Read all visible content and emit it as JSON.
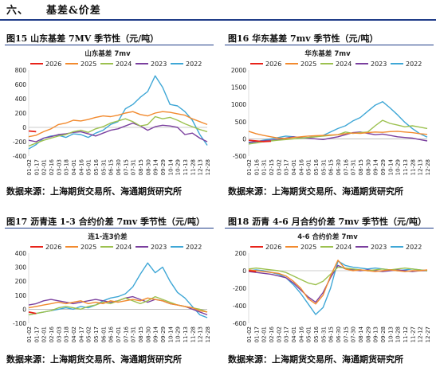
{
  "section": {
    "number": "六、",
    "title": "基差&价差"
  },
  "figures": [
    {
      "caption": "图15  山东基差 7MV 季节性（元/吨）",
      "source": "数据来源：上海期货交易所、海通期货研究所"
    },
    {
      "caption": "图16  华东基差 7mv 季节性（元/吨）",
      "source": "数据来源：上海期货交易所、海通期货研究所"
    },
    {
      "caption": "图17  沥青连 1-3 合约价差 7mv 季节性（元/吨）",
      "source": "数据来源：上海期货交易所、海通期货研究所"
    },
    {
      "caption": "图18  沥青 4-6 月合约价差 7mv 季节性（元/吨）",
      "source": "数据来源：上海期货交易所、海通期货研究所"
    }
  ],
  "colors": {
    "2026": "#e8231a",
    "2025": "#f28a2e",
    "2024": "#9cc14f",
    "2023": "#7a3f9e",
    "2022": "#3fa7d6"
  },
  "chart_data": [
    {
      "type": "line",
      "title": "山东基差 7mv",
      "categories": [
        "01-02",
        "01-17",
        "02-01",
        "02-16",
        "03-03",
        "03-18",
        "04-01",
        "04-16",
        "05-01",
        "05-16",
        "05-31",
        "06-15",
        "06-30",
        "07-15",
        "07-31",
        "08-15",
        "08-30",
        "09-14",
        "09-29",
        "10-14",
        "10-29",
        "11-13",
        "11-28",
        "12-13",
        "12-28"
      ],
      "ylim": [
        -400,
        800
      ],
      "yticks": [
        -400,
        -200,
        0,
        200,
        400,
        600,
        800
      ],
      "legend": "top",
      "series": [
        {
          "name": "2026",
          "values": [
            -50,
            -60,
            null,
            null,
            null,
            null,
            null,
            null,
            null,
            null,
            null,
            null,
            null,
            null,
            null,
            null,
            null,
            null,
            null,
            null,
            null,
            null,
            null,
            null,
            null
          ]
        },
        {
          "name": "2025",
          "values": [
            -130,
            -110,
            -60,
            -20,
            40,
            60,
            100,
            90,
            110,
            140,
            160,
            150,
            170,
            200,
            220,
            180,
            160,
            200,
            220,
            210,
            190,
            170,
            120,
            80,
            40
          ]
        },
        {
          "name": "2024",
          "values": [
            -260,
            -220,
            -180,
            -150,
            -120,
            -100,
            -60,
            -40,
            -70,
            -20,
            10,
            60,
            90,
            120,
            80,
            20,
            40,
            150,
            120,
            140,
            100,
            50,
            10,
            -30,
            -60
          ]
        },
        {
          "name": "2023",
          "values": [
            -180,
            -200,
            -150,
            -130,
            -100,
            -90,
            -70,
            -60,
            -90,
            -120,
            -80,
            -40,
            -20,
            20,
            60,
            20,
            -40,
            10,
            30,
            20,
            0,
            -100,
            -80,
            -150,
            -200
          ]
        },
        {
          "name": "2022",
          "values": [
            -300,
            -240,
            -150,
            -120,
            -110,
            -140,
            -90,
            -100,
            -140,
            -80,
            -40,
            40,
            80,
            260,
            320,
            420,
            500,
            720,
            560,
            320,
            300,
            220,
            100,
            -100,
            -250
          ]
        }
      ]
    },
    {
      "type": "line",
      "title": "华东基差 7mv",
      "categories": [
        "01-02",
        "01-16",
        "01-31",
        "02-15",
        "03-02",
        "03-17",
        "04-01",
        "04-16",
        "05-01",
        "05-16",
        "05-31",
        "06-15",
        "06-30",
        "07-16",
        "07-31",
        "08-15",
        "08-30",
        "09-14",
        "09-29",
        "10-14",
        "10-29",
        "11-13",
        "11-28",
        "12-13",
        "12-28"
      ],
      "ylim": [
        -500,
        2000
      ],
      "yticks": [
        -500,
        0,
        500,
        1000,
        1500,
        2000
      ],
      "legend": "top",
      "series": [
        {
          "name": "2026",
          "values": [
            -40,
            -60,
            -80,
            -70,
            null,
            null,
            null,
            null,
            null,
            null,
            null,
            null,
            null,
            null,
            null,
            null,
            null,
            null,
            null,
            null,
            null,
            null,
            null,
            null,
            null
          ]
        },
        {
          "name": "2025",
          "values": [
            220,
            150,
            100,
            60,
            20,
            10,
            40,
            60,
            80,
            90,
            100,
            110,
            120,
            150,
            170,
            160,
            180,
            200,
            190,
            210,
            220,
            200,
            180,
            150,
            130
          ]
        },
        {
          "name": "2024",
          "values": [
            -150,
            -120,
            -80,
            -60,
            -40,
            -20,
            0,
            20,
            40,
            60,
            80,
            100,
            120,
            200,
            160,
            180,
            200,
            380,
            540,
            450,
            400,
            350,
            380,
            340,
            300
          ]
        },
        {
          "name": "2023",
          "values": [
            -100,
            -80,
            -60,
            -40,
            -20,
            20,
            60,
            40,
            20,
            0,
            -20,
            20,
            60,
            120,
            180,
            200,
            160,
            120,
            140,
            100,
            60,
            40,
            20,
            -20,
            -60
          ]
        },
        {
          "name": "2022",
          "values": [
            -120,
            -80,
            -40,
            0,
            40,
            80,
            60,
            20,
            40,
            60,
            100,
            200,
            300,
            380,
            520,
            620,
            800,
            980,
            1080,
            900,
            700,
            480,
            300,
            150,
            50
          ]
        }
      ]
    },
    {
      "type": "line",
      "title": "连1-连3价差",
      "categories": [
        "01-02",
        "01-17",
        "02-01",
        "02-16",
        "03-03",
        "03-18",
        "04-02",
        "04-17",
        "05-02",
        "05-17",
        "06-01",
        "06-16",
        "07-01",
        "07-16",
        "07-31",
        "08-15",
        "08-30",
        "09-14",
        "09-29",
        "10-14",
        "10-29",
        "11-13",
        "11-28",
        "12-13",
        "12-28"
      ],
      "ylim": [
        -100,
        400
      ],
      "yticks": [
        -100,
        0,
        100,
        200,
        300,
        400
      ],
      "legend": "top",
      "series": [
        {
          "name": "2026",
          "values": [
            -20,
            -30,
            null,
            null,
            null,
            null,
            null,
            null,
            null,
            null,
            null,
            null,
            null,
            null,
            null,
            null,
            null,
            null,
            null,
            null,
            null,
            null,
            null,
            null,
            null
          ]
        },
        {
          "name": "2025",
          "values": [
            10,
            20,
            30,
            40,
            50,
            40,
            50,
            60,
            40,
            50,
            40,
            60,
            50,
            60,
            70,
            60,
            80,
            70,
            60,
            40,
            30,
            20,
            10,
            -10,
            -20
          ]
        },
        {
          "name": "2024",
          "values": [
            -40,
            -30,
            -20,
            -10,
            10,
            20,
            10,
            0,
            20,
            30,
            50,
            40,
            60,
            80,
            60,
            40,
            60,
            90,
            70,
            50,
            30,
            20,
            10,
            0,
            -20
          ]
        },
        {
          "name": "2023",
          "values": [
            30,
            40,
            60,
            70,
            60,
            50,
            40,
            50,
            60,
            70,
            60,
            50,
            60,
            80,
            90,
            70,
            50,
            70,
            60,
            40,
            30,
            20,
            0,
            -20,
            -40
          ]
        },
        {
          "name": "2022",
          "values": [
            -40,
            -30,
            -20,
            -10,
            0,
            10,
            0,
            20,
            10,
            30,
            60,
            80,
            90,
            110,
            160,
            250,
            330,
            260,
            300,
            200,
            120,
            80,
            20,
            -40,
            -60
          ]
        }
      ]
    },
    {
      "type": "line",
      "title": "4-6 合约价差 7mv",
      "categories": [
        "01-02",
        "01-17",
        "02-01",
        "02-16",
        "03-02",
        "03-17",
        "04-01",
        "04-16",
        "05-01",
        "05-16",
        "05-31",
        "06-15",
        "06-30",
        "07-15",
        "07-30",
        "08-14",
        "08-29",
        "09-13",
        "09-28",
        "10-13",
        "10-28",
        "11-12",
        "11-27",
        "12-12",
        "12-27"
      ],
      "ylim": [
        -600,
        200
      ],
      "yticks": [
        -600,
        -400,
        -200,
        0,
        200
      ],
      "legend": "top",
      "series": [
        {
          "name": "2026",
          "values": [
            0,
            -10,
            null,
            null,
            null,
            null,
            null,
            null,
            null,
            null,
            null,
            null,
            null,
            null,
            null,
            null,
            null,
            null,
            null,
            null,
            null,
            null,
            null,
            null,
            null
          ]
        },
        {
          "name": "2025",
          "values": [
            10,
            0,
            -10,
            -20,
            -30,
            -60,
            -120,
            -200,
            -320,
            -380,
            -280,
            -60,
            120,
            20,
            0,
            10,
            0,
            -10,
            0,
            10,
            0,
            -10,
            0,
            0,
            10
          ]
        },
        {
          "name": "2024",
          "values": [
            20,
            30,
            20,
            10,
            0,
            -20,
            -60,
            -100,
            -140,
            -160,
            -120,
            -40,
            40,
            30,
            20,
            10,
            0,
            10,
            20,
            10,
            20,
            30,
            20,
            10,
            0
          ]
        },
        {
          "name": "2023",
          "values": [
            -10,
            -20,
            -30,
            -40,
            -60,
            -80,
            -140,
            -220,
            -300,
            -360,
            -250,
            -80,
            60,
            20,
            10,
            0,
            10,
            0,
            -10,
            0,
            10,
            0,
            -10,
            0,
            0
          ]
        },
        {
          "name": "2022",
          "values": [
            0,
            10,
            0,
            -20,
            -40,
            -80,
            -160,
            -260,
            -380,
            -500,
            -420,
            -200,
            110,
            60,
            40,
            30,
            20,
            30,
            20,
            10,
            0,
            10,
            20,
            10,
            0
          ]
        }
      ]
    }
  ]
}
